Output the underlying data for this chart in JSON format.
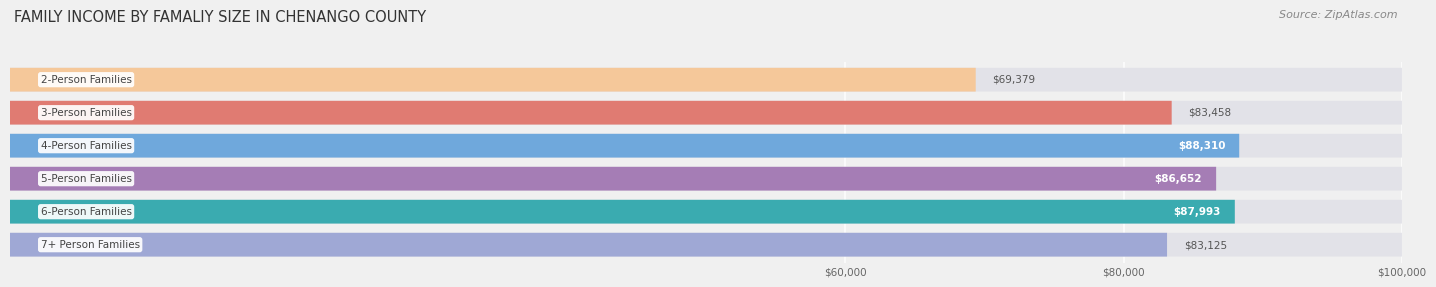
{
  "title": "FAMILY INCOME BY FAMALIY SIZE IN CHENANGO COUNTY",
  "source": "Source: ZipAtlas.com",
  "categories": [
    "2-Person Families",
    "3-Person Families",
    "4-Person Families",
    "5-Person Families",
    "6-Person Families",
    "7+ Person Families"
  ],
  "values": [
    69379,
    83458,
    88310,
    86652,
    87993,
    83125
  ],
  "bar_colors": [
    "#f5c89a",
    "#e07b72",
    "#6fa8dc",
    "#a57db5",
    "#3aabb0",
    "#9fa8d5"
  ],
  "value_inside": [
    false,
    false,
    true,
    true,
    true,
    false
  ],
  "xmin": 0,
  "xmax": 100000,
  "xticks": [
    60000,
    80000,
    100000
  ],
  "xtick_labels": [
    "$60,000",
    "$80,000",
    "$100,000"
  ],
  "background_color": "#f0f0f0",
  "bar_bg_color": "#e2e2e8",
  "title_fontsize": 10.5,
  "source_fontsize": 8,
  "label_fontsize": 7.5,
  "value_fontsize": 7.5
}
